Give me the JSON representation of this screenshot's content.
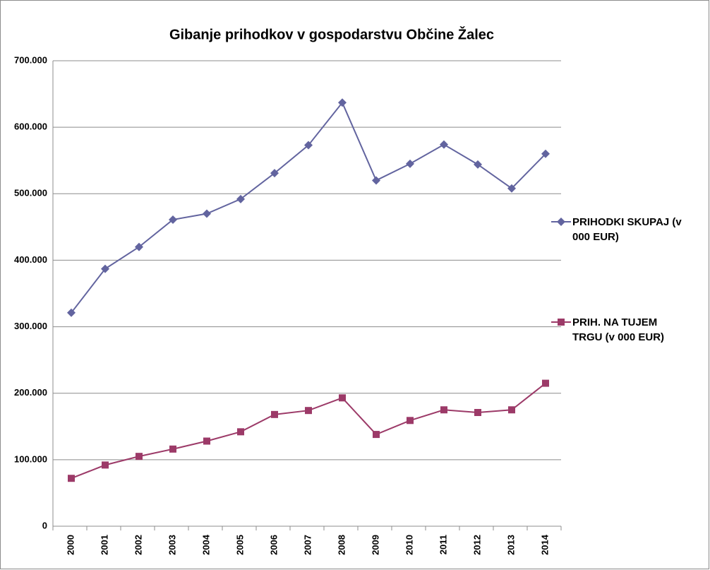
{
  "chart_data": {
    "type": "line",
    "title": "Gibanje prihodkov v gospodarstvu Občine Žalec",
    "categories": [
      "2000",
      "2001",
      "2002",
      "2003",
      "2004",
      "2005",
      "2006",
      "2007",
      "2008",
      "2009",
      "2010",
      "2011",
      "2012",
      "2013",
      "2014"
    ],
    "series": [
      {
        "name": "PRIHODKI SKUPAJ (v 000 EUR)",
        "color": "#62649f",
        "marker": "diamond",
        "values": [
          321000,
          387000,
          420000,
          461000,
          470000,
          492000,
          531000,
          573000,
          637000,
          520000,
          545000,
          574000,
          544000,
          508000,
          560000
        ]
      },
      {
        "name": "PRIH. NA TUJEM TRGU (v 000 EUR)",
        "color": "#9c3a68",
        "marker": "square",
        "values": [
          72000,
          92000,
          105000,
          116000,
          128000,
          142000,
          168000,
          174000,
          193000,
          138000,
          159000,
          175000,
          171000,
          175000,
          215000
        ]
      }
    ],
    "ylim": [
      0,
      700000
    ],
    "yticks": [
      {
        "value": 0,
        "label": "0"
      },
      {
        "value": 100000,
        "label": "100.000"
      },
      {
        "value": 200000,
        "label": "200.000"
      },
      {
        "value": 300000,
        "label": "300.000"
      },
      {
        "value": 400000,
        "label": "400.000"
      },
      {
        "value": 500000,
        "label": "500.000"
      },
      {
        "value": 600000,
        "label": "600.000"
      },
      {
        "value": 700000,
        "label": "700.000"
      }
    ],
    "grid": true,
    "legend": "right"
  }
}
